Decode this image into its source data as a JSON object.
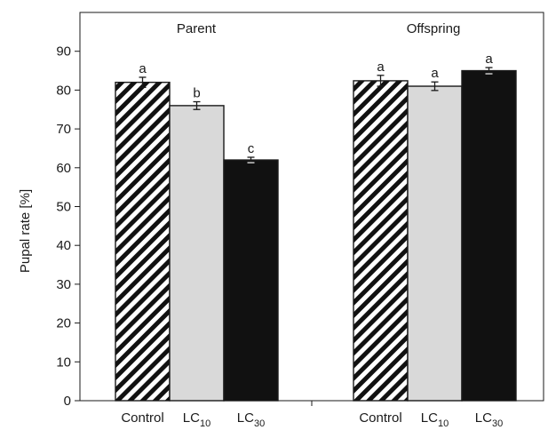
{
  "chart_data": {
    "type": "bar",
    "ylabel": "Pupal rate [%]",
    "ylim": [
      0,
      100
    ],
    "yticks": [
      0,
      10,
      20,
      30,
      40,
      50,
      60,
      70,
      80,
      90
    ],
    "grid": false,
    "groups": [
      {
        "title": "Parent",
        "bars": [
          {
            "label": "Control",
            "value": 82,
            "error": 1.3,
            "significance": "a",
            "fill": "hatch"
          },
          {
            "label": "LC",
            "label_sub": "10",
            "value": 76,
            "error": 1.0,
            "significance": "b",
            "fill": "#d9d9d9"
          },
          {
            "label": "LC",
            "label_sub": "30",
            "value": 62,
            "error": 0.7,
            "significance": "c",
            "fill": "#111111"
          }
        ]
      },
      {
        "title": "Offspring",
        "bars": [
          {
            "label": "Control",
            "value": 82.4,
            "error": 1.4,
            "significance": "a",
            "fill": "hatch"
          },
          {
            "label": "LC",
            "label_sub": "10",
            "value": 81,
            "error": 1.1,
            "significance": "a",
            "fill": "#d9d9d9"
          },
          {
            "label": "LC",
            "label_sub": "30",
            "value": 85,
            "error": 0.8,
            "significance": "a",
            "fill": "#111111"
          }
        ]
      }
    ]
  }
}
